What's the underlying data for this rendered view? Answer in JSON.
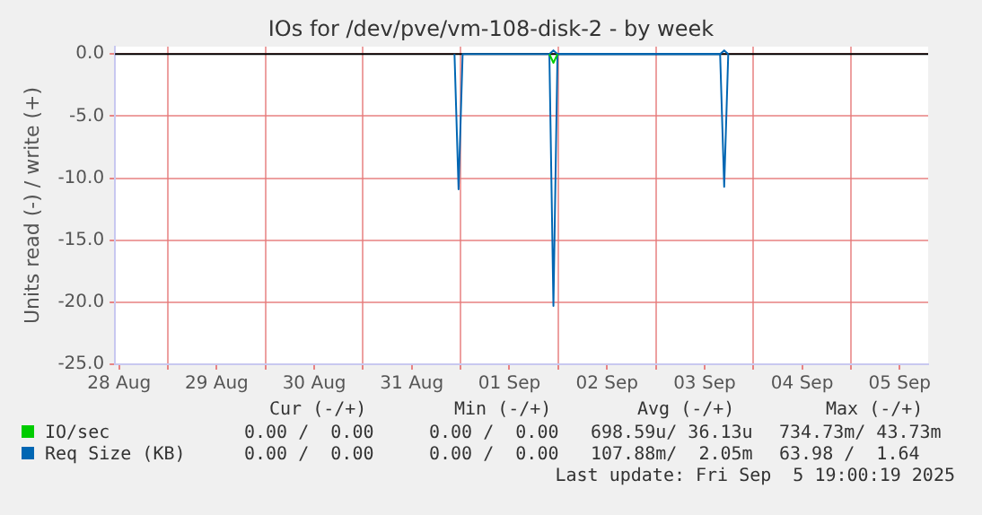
{
  "chart_data": {
    "type": "line",
    "title": "IOs for /dev/pve/vm-108-disk-2 - by week",
    "ylabel": "Units read (-) / write (+)",
    "xlim": [
      "2025-08-28T11:00",
      "2025-09-05T19:00"
    ],
    "xticks": [
      {
        "value": "2025-08-28T12:00",
        "label": "28 Aug"
      },
      {
        "value": "2025-08-29T00:00",
        "label": null
      },
      {
        "value": "2025-08-29T12:00",
        "label": "29 Aug"
      },
      {
        "value": "2025-08-30T00:00",
        "label": null
      },
      {
        "value": "2025-08-30T12:00",
        "label": "30 Aug"
      },
      {
        "value": "2025-08-31T00:00",
        "label": null
      },
      {
        "value": "2025-08-31T12:00",
        "label": "31 Aug"
      },
      {
        "value": "2025-09-01T00:00",
        "label": null
      },
      {
        "value": "2025-09-01T12:00",
        "label": "01 Sep"
      },
      {
        "value": "2025-09-02T00:00",
        "label": null
      },
      {
        "value": "2025-09-02T12:00",
        "label": "02 Sep"
      },
      {
        "value": "2025-09-03T00:00",
        "label": null
      },
      {
        "value": "2025-09-03T12:00",
        "label": "03 Sep"
      },
      {
        "value": "2025-09-04T00:00",
        "label": null
      },
      {
        "value": "2025-09-04T12:00",
        "label": "04 Sep"
      },
      {
        "value": "2025-09-05T00:00",
        "label": null
      },
      {
        "value": "2025-09-05T12:00",
        "label": "05 Sep"
      }
    ],
    "ylim": [
      -25,
      0.6
    ],
    "yticks": [
      {
        "value": 0,
        "label": "0.0"
      },
      {
        "value": -5,
        "label": "-5.0"
      },
      {
        "value": -10,
        "label": "-10.0"
      },
      {
        "value": -15,
        "label": "-15.0"
      },
      {
        "value": -20,
        "label": "-20.0"
      },
      {
        "value": -25,
        "label": "-25.0"
      }
    ],
    "grid": true,
    "legend": "bottom left",
    "ref_lines": [
      {
        "axis": "y",
        "value": 0,
        "color": "#000000"
      }
    ],
    "series": [
      {
        "name": "IO/sec",
        "color": "#00cc00",
        "x": [
          "2025-09-01T21:50",
          "2025-09-01T22:50",
          "2025-09-01T23:50"
        ],
        "values": [
          0,
          -0.7,
          0
        ]
      },
      {
        "name": "Req Size (KB)",
        "color": "#0066b3",
        "x": [
          "2025-08-31T22:30",
          "2025-08-31T23:30",
          "2025-09-01T00:30",
          "2025-09-01T21:50",
          "2025-09-01T22:50",
          "2025-09-01T23:50",
          "2025-09-03T15:50",
          "2025-09-03T16:50",
          "2025-09-03T17:50"
        ],
        "values": [
          0,
          -10.9,
          0,
          0,
          -20.3,
          0,
          0,
          -10.7,
          0
        ]
      },
      {
        "color": "#0066b3",
        "x": [
          "2025-09-01T21:50",
          "2025-09-01T22:50",
          "2025-09-01T23:50",
          "2025-09-03T15:50",
          "2025-09-03T16:50",
          "2025-09-03T17:50"
        ],
        "values": [
          0,
          0.3,
          0,
          0,
          0.3,
          0
        ]
      }
    ],
    "annotations": [
      "Cur (-/+)",
      "Min (-/+)",
      "Avg (-/+)",
      "Max (-/+)",
      "0.00 /  0.00",
      "0.00 /  0.00",
      "698.59u/ 36.13u",
      "734.73m/ 43.73m",
      "0.00 /  0.00",
      "0.00 /  0.00",
      "107.88m/  2.05m",
      "63.98 /  1.64",
      "Last update: Fri Sep  5 19:00:19 2025"
    ]
  }
}
